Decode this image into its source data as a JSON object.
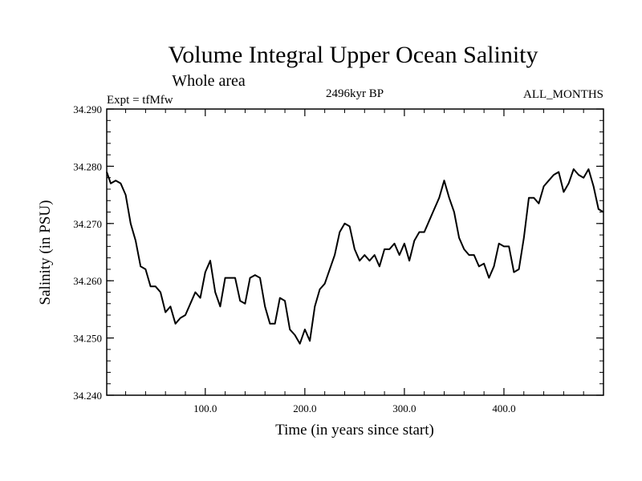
{
  "chart_data": {
    "type": "line",
    "title": "Volume Integral Upper Ocean Salinity",
    "subtitle": "Whole area",
    "experiment": "Expt = tfMfw",
    "period": "2496kyr BP",
    "months": "ALL_MONTHS",
    "xlabel": "Time (in years since start)",
    "ylabel": "Salinity (in PSU)",
    "xlim": [
      1,
      500
    ],
    "ylim": [
      34.24,
      34.29
    ],
    "x_ticks": [
      100,
      200,
      300,
      400
    ],
    "x_tick_labels": [
      "100.0",
      "200.0",
      "300.0",
      "400.0"
    ],
    "y_ticks": [
      34.24,
      34.25,
      34.26,
      34.27,
      34.28,
      34.29
    ],
    "y_tick_labels": [
      "34.240",
      "34.250",
      "34.260",
      "34.270",
      "34.280",
      "34.290"
    ],
    "series": [
      {
        "name": "salinity",
        "color": "#000000",
        "x": [
          1,
          5,
          10,
          15,
          20,
          25,
          30,
          35,
          40,
          45,
          50,
          55,
          60,
          65,
          70,
          75,
          80,
          85,
          90,
          95,
          100,
          105,
          110,
          115,
          120,
          125,
          130,
          135,
          140,
          145,
          150,
          155,
          160,
          165,
          170,
          175,
          180,
          185,
          190,
          195,
          200,
          205,
          210,
          215,
          220,
          225,
          230,
          235,
          240,
          245,
          250,
          255,
          260,
          265,
          270,
          275,
          280,
          285,
          290,
          295,
          300,
          305,
          310,
          315,
          320,
          325,
          330,
          335,
          340,
          345,
          350,
          355,
          360,
          365,
          370,
          375,
          380,
          385,
          390,
          395,
          400,
          405,
          410,
          415,
          420,
          425,
          430,
          435,
          440,
          445,
          450,
          455,
          460,
          465,
          470,
          475,
          480,
          485,
          490,
          495,
          500
        ],
        "values": [
          34.279,
          34.277,
          34.2775,
          34.277,
          34.275,
          34.27,
          34.267,
          34.2625,
          34.262,
          34.259,
          34.259,
          34.258,
          34.2545,
          34.2555,
          34.2525,
          34.2535,
          34.254,
          34.256,
          34.258,
          34.257,
          34.2615,
          34.2635,
          34.258,
          34.2555,
          34.2605,
          34.2605,
          34.2605,
          34.2565,
          34.256,
          34.2605,
          34.261,
          34.2605,
          34.2555,
          34.2525,
          34.2525,
          34.257,
          34.2565,
          34.2515,
          34.2505,
          34.249,
          34.2515,
          34.2495,
          34.2555,
          34.2585,
          34.2595,
          34.262,
          34.2645,
          34.2685,
          34.27,
          34.2695,
          34.2655,
          34.2635,
          34.2645,
          34.2635,
          34.2645,
          34.2625,
          34.2655,
          34.2655,
          34.2665,
          34.2645,
          34.2665,
          34.2635,
          34.267,
          34.2685,
          34.2685,
          34.2705,
          34.2725,
          34.2745,
          34.2775,
          34.2745,
          34.272,
          34.2675,
          34.2655,
          34.2645,
          34.2645,
          34.2625,
          34.263,
          34.2605,
          34.2625,
          34.2665,
          34.266,
          34.266,
          34.2615,
          34.262,
          34.2675,
          34.2745,
          34.2745,
          34.2735,
          34.2765,
          34.2775,
          34.2785,
          34.279,
          34.2755,
          34.277,
          34.2795,
          34.2785,
          34.278,
          34.2795,
          34.2765,
          34.2725,
          34.272
        ]
      }
    ]
  }
}
